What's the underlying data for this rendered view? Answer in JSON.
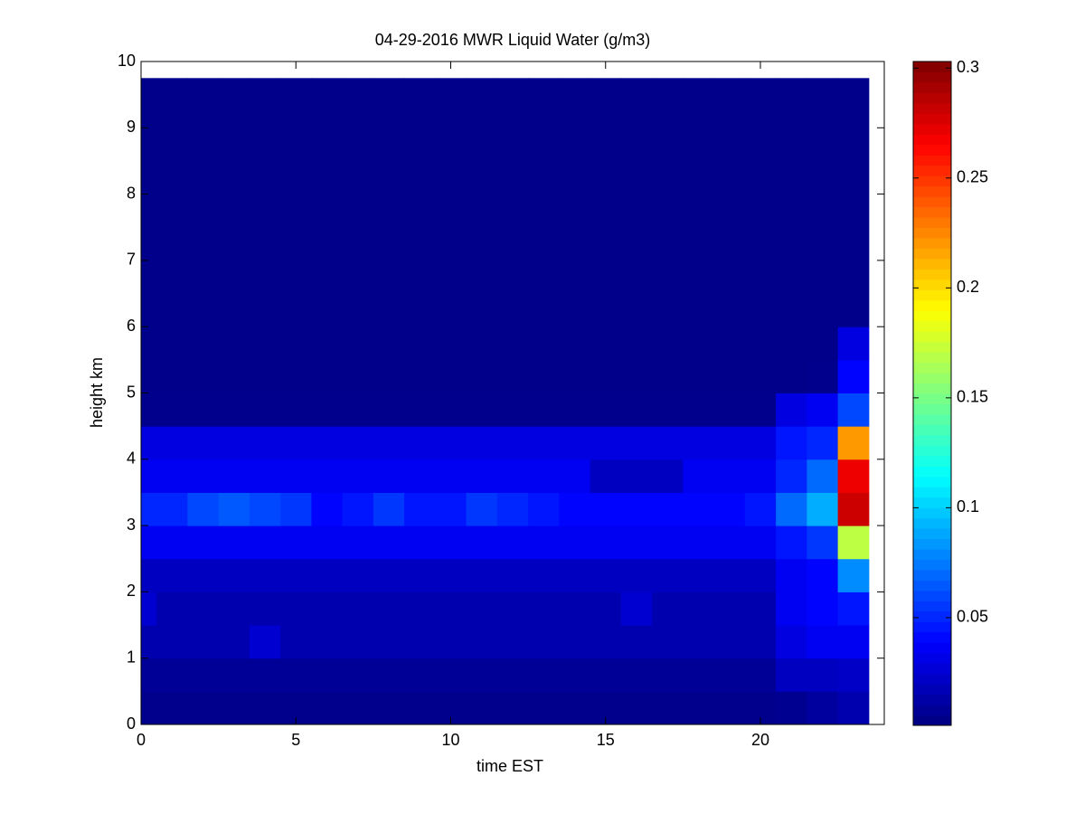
{
  "chart_data": {
    "type": "heatmap",
    "title": "04-29-2016 MWR Liquid Water (g/m3)",
    "xlabel": "time EST",
    "ylabel": "height km",
    "colormap": "jet",
    "x": [
      0,
      0.5,
      1.5,
      2.5,
      3.5,
      4.5,
      5.5,
      6.5,
      7.5,
      8.5,
      9.5,
      10.5,
      11.5,
      12.5,
      13.5,
      14.5,
      15.5,
      16.5,
      17.5,
      18.5,
      19.5,
      20.5,
      21.5,
      22.5,
      23.5
    ],
    "y": [
      0,
      0.5,
      1,
      1.5,
      2,
      2.5,
      3,
      3.5,
      4,
      4.5,
      5,
      5.5,
      6,
      9.75
    ],
    "z": [
      [
        0.005,
        0.005,
        0.005,
        0.005,
        0.005,
        0.005,
        0.005,
        0.005,
        0.005,
        0.005,
        0.005,
        0.005,
        0.005,
        0.005,
        0.005,
        0.005,
        0.005,
        0.005,
        0.005,
        0.005,
        0.005,
        0.006,
        0.01,
        0.015
      ],
      [
        0.008,
        0.008,
        0.008,
        0.008,
        0.008,
        0.008,
        0.008,
        0.008,
        0.008,
        0.008,
        0.008,
        0.008,
        0.008,
        0.008,
        0.008,
        0.008,
        0.008,
        0.008,
        0.008,
        0.008,
        0.008,
        0.02,
        0.02,
        0.022
      ],
      [
        0.015,
        0.015,
        0.015,
        0.015,
        0.025,
        0.015,
        0.015,
        0.015,
        0.015,
        0.015,
        0.015,
        0.015,
        0.015,
        0.015,
        0.015,
        0.015,
        0.015,
        0.015,
        0.015,
        0.015,
        0.015,
        0.03,
        0.035,
        0.035
      ],
      [
        0.025,
        0.015,
        0.015,
        0.015,
        0.015,
        0.015,
        0.015,
        0.015,
        0.015,
        0.015,
        0.015,
        0.015,
        0.015,
        0.015,
        0.015,
        0.015,
        0.025,
        0.015,
        0.015,
        0.015,
        0.015,
        0.035,
        0.04,
        0.045
      ],
      [
        0.02,
        0.02,
        0.02,
        0.02,
        0.02,
        0.02,
        0.02,
        0.02,
        0.02,
        0.02,
        0.02,
        0.02,
        0.02,
        0.02,
        0.02,
        0.02,
        0.02,
        0.02,
        0.02,
        0.02,
        0.02,
        0.035,
        0.04,
        0.08
      ],
      [
        0.035,
        0.035,
        0.035,
        0.035,
        0.035,
        0.035,
        0.035,
        0.035,
        0.035,
        0.035,
        0.035,
        0.035,
        0.035,
        0.035,
        0.035,
        0.035,
        0.035,
        0.035,
        0.035,
        0.035,
        0.035,
        0.045,
        0.055,
        0.17
      ],
      [
        0.05,
        0.05,
        0.06,
        0.065,
        0.06,
        0.055,
        0.04,
        0.045,
        0.055,
        0.045,
        0.045,
        0.055,
        0.05,
        0.045,
        0.04,
        0.04,
        0.04,
        0.04,
        0.04,
        0.04,
        0.045,
        0.07,
        0.09,
        0.28
      ],
      [
        0.035,
        0.035,
        0.035,
        0.035,
        0.035,
        0.035,
        0.035,
        0.035,
        0.035,
        0.035,
        0.035,
        0.035,
        0.035,
        0.035,
        0.035,
        0.02,
        0.02,
        0.02,
        0.035,
        0.035,
        0.035,
        0.05,
        0.07,
        0.27
      ],
      [
        0.03,
        0.03,
        0.03,
        0.03,
        0.03,
        0.03,
        0.03,
        0.03,
        0.03,
        0.03,
        0.03,
        0.03,
        0.03,
        0.03,
        0.03,
        0.03,
        0.03,
        0.03,
        0.03,
        0.03,
        0.03,
        0.045,
        0.05,
        0.22
      ],
      [
        0.005,
        0.005,
        0.005,
        0.005,
        0.005,
        0.005,
        0.005,
        0.005,
        0.005,
        0.005,
        0.005,
        0.005,
        0.005,
        0.005,
        0.005,
        0.005,
        0.005,
        0.005,
        0.005,
        0.005,
        0.005,
        0.03,
        0.035,
        0.06
      ],
      [
        0.004,
        0.004,
        0.004,
        0.004,
        0.004,
        0.004,
        0.004,
        0.004,
        0.004,
        0.004,
        0.004,
        0.004,
        0.004,
        0.004,
        0.004,
        0.004,
        0.004,
        0.004,
        0.004,
        0.004,
        0.004,
        0.004,
        0.005,
        0.04
      ],
      [
        0.004,
        0.004,
        0.004,
        0.004,
        0.004,
        0.004,
        0.004,
        0.004,
        0.004,
        0.004,
        0.004,
        0.004,
        0.004,
        0.004,
        0.004,
        0.004,
        0.004,
        0.004,
        0.004,
        0.004,
        0.004,
        0.004,
        0.004,
        0.03
      ],
      [
        0.004,
        0.004,
        0.004,
        0.004,
        0.004,
        0.004,
        0.004,
        0.004,
        0.004,
        0.004,
        0.004,
        0.004,
        0.004,
        0.004,
        0.004,
        0.004,
        0.004,
        0.004,
        0.004,
        0.004,
        0.004,
        0.004,
        0.004,
        0.004
      ]
    ],
    "xlim": [
      0,
      24
    ],
    "xticks": [
      0,
      5,
      10,
      15,
      20
    ],
    "ylim": [
      0,
      10
    ],
    "yticks": [
      0,
      1,
      2,
      3,
      4,
      5,
      6,
      7,
      8,
      9,
      10
    ],
    "clim": [
      0.001,
      0.303
    ],
    "cticks": [
      0.05,
      0.1,
      0.15,
      0.2,
      0.25,
      0.3
    ]
  }
}
